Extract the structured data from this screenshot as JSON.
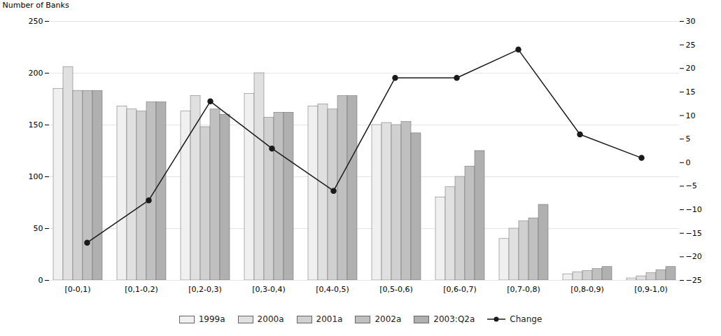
{
  "chart_data": {
    "type": "bar",
    "categories": [
      "[0-0,1)",
      "[0,1-0,2)",
      "[0,2-0,3)",
      "[0,3-0,4)",
      "[0,4-0,5)",
      "[0,5-0,6)",
      "[0,6-0,7)",
      "[0,7-0,8)",
      "[0,8-0,9)",
      "[0,9-1,0)"
    ],
    "series": [
      {
        "name": "1999a",
        "color": "#f0f0f0",
        "values": [
          185,
          168,
          163,
          180,
          168,
          150,
          80,
          40,
          6,
          2
        ]
      },
      {
        "name": "2000a",
        "color": "#e0e0e0",
        "values": [
          206,
          165,
          178,
          200,
          170,
          152,
          90,
          50,
          8,
          4
        ]
      },
      {
        "name": "2001a",
        "color": "#d0d0d0",
        "values": [
          183,
          163,
          148,
          157,
          165,
          150,
          100,
          57,
          9,
          7
        ]
      },
      {
        "name": "2002a",
        "color": "#c0c0c0",
        "values": [
          183,
          172,
          165,
          162,
          178,
          153,
          110,
          60,
          11,
          10
        ]
      },
      {
        "name": "2003:Q2a",
        "color": "#b0b0b0",
        "values": [
          183,
          172,
          160,
          162,
          178,
          142,
          125,
          73,
          13,
          13
        ]
      },
      {
        "name": "Change",
        "type": "line",
        "axis": "y2",
        "color": "#1a1a1a",
        "marker": "circle",
        "values": [
          -17,
          -8,
          13,
          3,
          -6,
          18,
          18,
          24,
          6,
          1
        ]
      }
    ],
    "ylabel": "Number of Banks",
    "ylim": [
      0,
      250
    ],
    "yticks": [
      0,
      50,
      100,
      150,
      200,
      250
    ],
    "y2lim": [
      -25,
      30
    ],
    "y2ticks": [
      -25,
      -20,
      -15,
      -10,
      -5,
      0,
      5,
      10,
      15,
      20,
      25,
      30
    ],
    "grid": true,
    "legend": "bottom"
  }
}
